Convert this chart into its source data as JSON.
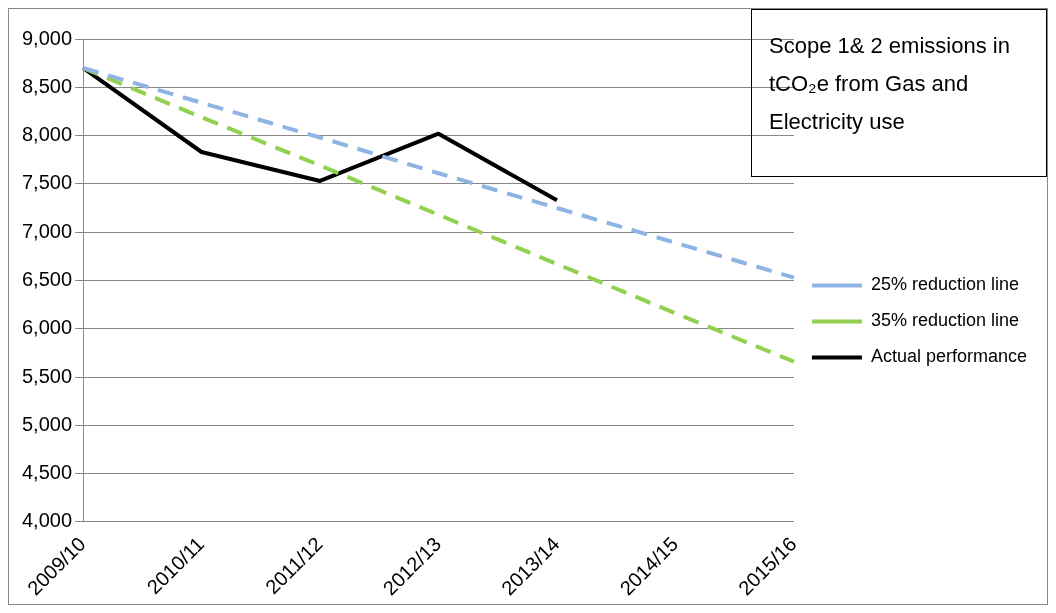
{
  "chart_data": {
    "type": "line",
    "title": "Scope 1& 2 emissions in tCO₂e from Gas and Electricity use",
    "categories": [
      "2009/10",
      "2010/11",
      "2011/12",
      "2012/13",
      "2013/14",
      "2014/15",
      "2015/16"
    ],
    "series": [
      {
        "name": "25% reduction line",
        "color": "#8eb4e3",
        "line_style": "dashed",
        "values": [
          8700,
          8340,
          7980,
          7610,
          7250,
          6890,
          6530
        ]
      },
      {
        "name": "35% reduction line",
        "color": "#92d050",
        "line_style": "dashed",
        "values": [
          8700,
          8190,
          7690,
          7180,
          6670,
          6160,
          5660
        ]
      },
      {
        "name": "Actual performance",
        "color": "#000000",
        "line_style": "solid",
        "values": [
          8700,
          7830,
          7530,
          8020,
          7330,
          null,
          null
        ]
      }
    ],
    "ylim": [
      4000,
      9000
    ],
    "yticks": [
      {
        "value": 4000,
        "label": "4,000"
      },
      {
        "value": 4500,
        "label": "4,500"
      },
      {
        "value": 5000,
        "label": "5,000"
      },
      {
        "value": 5500,
        "label": "5,500"
      },
      {
        "value": 6000,
        "label": "6,000"
      },
      {
        "value": 6500,
        "label": "6,500"
      },
      {
        "value": 7000,
        "label": "7,000"
      },
      {
        "value": 7500,
        "label": "7,500"
      },
      {
        "value": 8000,
        "label": "8,000"
      },
      {
        "value": 8500,
        "label": "8,500"
      },
      {
        "value": 9000,
        "label": "9,000"
      }
    ],
    "grid": "y",
    "legend": "right",
    "marker": "none"
  }
}
